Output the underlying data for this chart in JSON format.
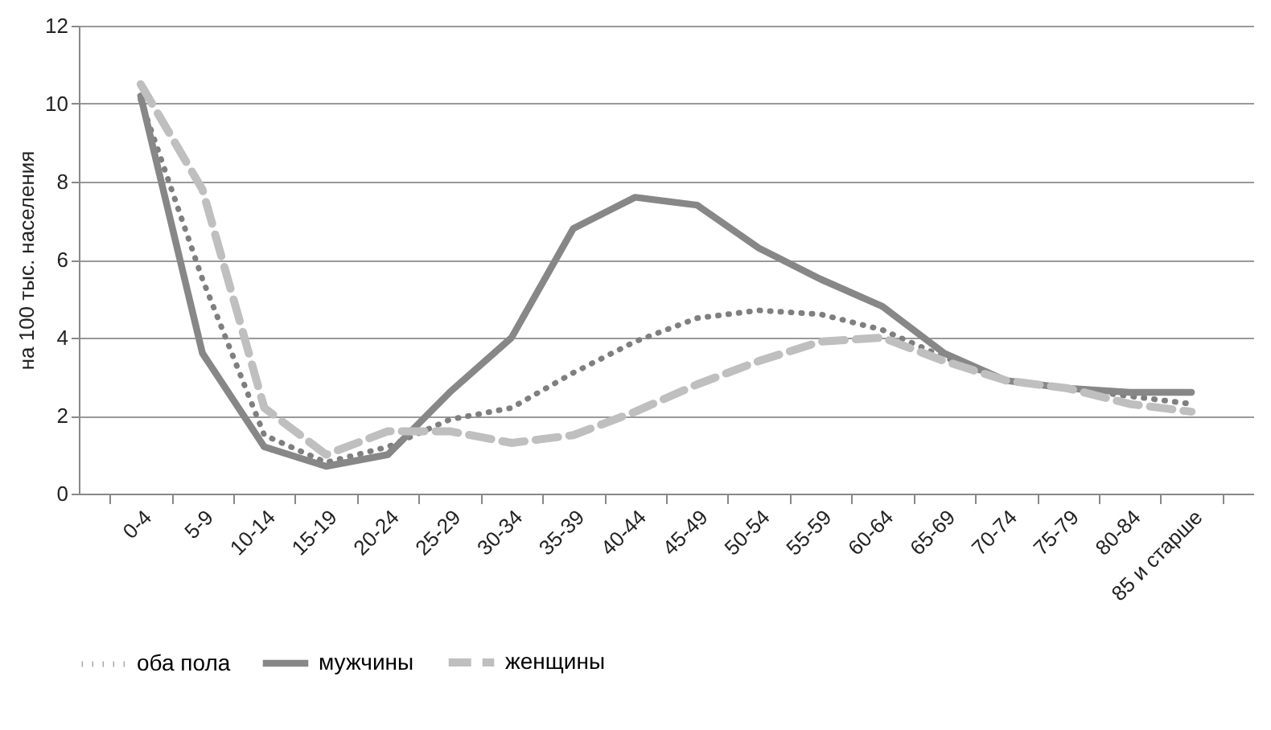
{
  "chart_data": {
    "type": "line",
    "ylabel": "на 100 тыс. населения",
    "categories": [
      "0-4",
      "5-9",
      "10-14",
      "15-19",
      "20-24",
      "25-29",
      "30-34",
      "35-39",
      "40-44",
      "45-49",
      "50-54",
      "55-59",
      "60-64",
      "65-69",
      "70-74",
      "75-79",
      "80-84",
      "85 и старше"
    ],
    "series": [
      {
        "name": "оба пола",
        "color": "#7f7f7f",
        "line_style": "dotted",
        "values": [
          10.1,
          5.5,
          1.5,
          0.8,
          1.2,
          1.9,
          2.2,
          3.1,
          3.9,
          4.5,
          4.7,
          4.6,
          4.2,
          3.5,
          2.9,
          2.7,
          2.5,
          2.3
        ]
      },
      {
        "name": "мужчины",
        "color": "#878787",
        "line_style": "solid",
        "values": [
          10.2,
          3.6,
          1.2,
          0.7,
          1.0,
          2.6,
          4.0,
          6.8,
          7.6,
          7.4,
          6.3,
          5.5,
          4.8,
          3.6,
          2.9,
          2.7,
          2.6,
          2.6
        ]
      },
      {
        "name": "женщины",
        "color": "#bfbfbf",
        "line_style": "dashed",
        "values": [
          10.5,
          7.8,
          2.2,
          1.0,
          1.6,
          1.6,
          1.3,
          1.5,
          2.1,
          2.8,
          3.4,
          3.9,
          4.0,
          3.4,
          2.9,
          2.7,
          2.3,
          2.1
        ]
      }
    ],
    "ylim": [
      0,
      12
    ],
    "yticks": [
      0,
      2,
      4,
      6,
      8,
      10,
      12
    ],
    "grid": "y",
    "legend": "bottom",
    "marker": "none"
  }
}
